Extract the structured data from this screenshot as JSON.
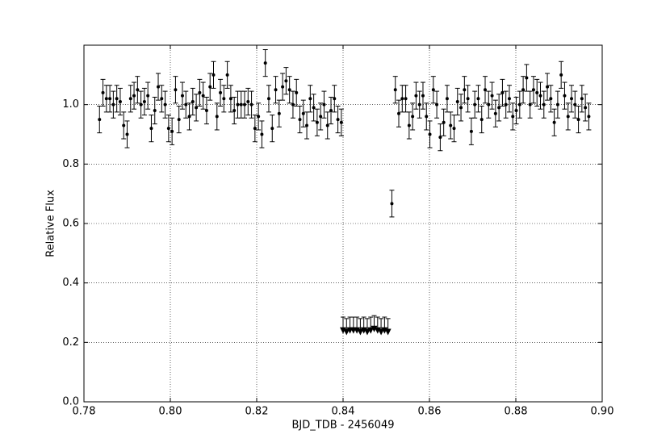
{
  "chart_data": {
    "type": "scatter",
    "xlabel": "BJD_TDB - 2456049",
    "ylabel": "Relative Flux",
    "xlim": [
      0.78,
      0.9
    ],
    "ylim": [
      0,
      1.2
    ],
    "xticks": [
      0.78,
      {
        "value": 0.8,
        "label": "0.80"
      },
      0.82,
      0.84,
      0.86,
      0.88,
      {
        "value": 0.9,
        "label": "0.90"
      }
    ],
    "yticks": [
      {
        "value": 0,
        "label": "0.0"
      },
      0.2,
      0.4,
      0.6,
      0.8,
      {
        "value": 1,
        "label": "1.0"
      }
    ],
    "grid": true,
    "series": [
      {
        "color": "#000000",
        "marker": "o",
        "error": 0.045,
        "x": [
          0.7836,
          0.7844,
          0.7852,
          0.786,
          0.7868,
          0.7876,
          0.7884,
          0.7892,
          0.79,
          0.7908,
          0.7916,
          0.7924,
          0.7932,
          0.794,
          0.7948,
          0.7956,
          0.7964,
          0.7972,
          0.798,
          0.7988,
          0.7996,
          0.8004,
          0.8012,
          0.802,
          0.8028,
          0.8036,
          0.8044,
          0.8052,
          0.806,
          0.8068,
          0.8076,
          0.8084,
          0.8092,
          0.81,
          0.8108,
          0.8116,
          0.8124,
          0.8132,
          0.814,
          0.8148,
          0.8156,
          0.8164,
          0.8172,
          0.818,
          0.8188,
          0.8196,
          0.8204,
          0.8212,
          0.822,
          0.8228,
          0.8236,
          0.8244,
          0.8252,
          0.826,
          0.8268,
          0.8276,
          0.8284,
          0.8292,
          0.83,
          0.8308,
          0.8316,
          0.8324,
          0.8332,
          0.834,
          0.8348,
          0.8356,
          0.8364,
          0.8372,
          0.838,
          0.8388,
          0.8396,
          0.8513,
          0.8521,
          0.8529,
          0.8537,
          0.8545,
          0.8553,
          0.8561,
          0.8569,
          0.8577,
          0.8585,
          0.8593,
          0.8601,
          0.8609,
          0.8617,
          0.8625,
          0.8633,
          0.8641,
          0.8649,
          0.8657,
          0.8665,
          0.8673,
          0.8681,
          0.8689,
          0.8697,
          0.8705,
          0.8713,
          0.8721,
          0.8729,
          0.8737,
          0.8745,
          0.8753,
          0.8761,
          0.8769,
          0.8777,
          0.8785,
          0.8793,
          0.8801,
          0.8809,
          0.8817,
          0.8825,
          0.8833,
          0.8841,
          0.8849,
          0.8857,
          0.8865,
          0.8873,
          0.8881,
          0.8889,
          0.8897,
          0.8905,
          0.8913,
          0.8921,
          0.8929,
          0.8937,
          0.8945,
          0.8953,
          0.8961,
          0.8969
        ],
        "values": [
          0.95,
          1.04,
          1.02,
          1.02,
          1.0,
          1.02,
          1.01,
          0.93,
          0.9,
          1.02,
          1.03,
          1.05,
          1.0,
          1.01,
          1.03,
          0.92,
          0.98,
          1.06,
          1.02,
          1.0,
          0.92,
          0.91,
          1.05,
          0.95,
          1.03,
          1.0,
          0.96,
          1.01,
          0.99,
          1.04,
          1.03,
          0.98,
          1.06,
          1.1,
          0.96,
          1.04,
          1.02,
          1.1,
          1.02,
          0.98,
          1.0,
          1.0,
          1.0,
          1.01,
          1.0,
          0.92,
          0.96,
          0.9,
          1.14,
          1.02,
          0.92,
          1.05,
          0.97,
          1.06,
          1.08,
          1.05,
          1.0,
          1.04,
          0.95,
          0.97,
          0.93,
          1.02,
          0.99,
          0.94,
          0.96,
          1.0,
          0.93,
          0.98,
          1.02,
          0.95,
          0.94,
          0.667,
          1.05,
          0.97,
          1.02,
          1.02,
          0.93,
          0.96,
          1.03,
          1.0,
          1.03,
          0.96,
          0.9,
          1.05,
          1.0,
          0.89,
          0.94,
          1.02,
          0.93,
          0.92,
          1.01,
          0.99,
          1.05,
          1.02,
          0.91,
          1.0,
          1.02,
          0.95,
          1.05,
          1.0,
          1.03,
          0.97,
          0.99,
          1.04,
          1.0,
          1.02,
          0.96,
          0.98,
          1.0,
          1.05,
          1.09,
          1.0,
          1.05,
          1.04,
          1.03,
          1.0,
          1.06,
          1.02,
          0.94,
          1.0,
          1.1,
          1.03,
          0.96,
          1.02,
          1.0,
          0.95,
          1.02,
          0.99,
          0.96
        ]
      },
      {
        "color": "#000000",
        "marker": "v",
        "error": 0.045,
        "x": [
          0.84,
          0.8408,
          0.8416,
          0.8424,
          0.8432,
          0.844,
          0.8448,
          0.8456,
          0.8464,
          0.8472,
          0.848,
          0.8488,
          0.8496,
          0.8504
        ],
        "values": [
          0.24,
          0.235,
          0.24,
          0.24,
          0.24,
          0.235,
          0.24,
          0.235,
          0.24,
          0.245,
          0.24,
          0.235,
          0.24,
          0.235
        ]
      }
    ]
  }
}
